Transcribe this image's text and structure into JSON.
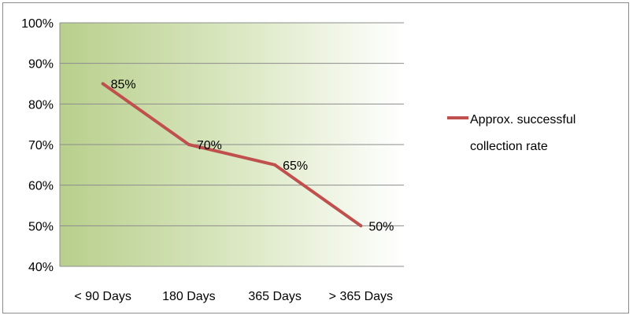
{
  "chart_data": {
    "type": "line",
    "categories": [
      "< 90 Days",
      "180 Days",
      "365 Days",
      "> 365 Days"
    ],
    "series": [
      {
        "name": "Approx. successful collection rate",
        "values": [
          85,
          70,
          65,
          50
        ],
        "labels": [
          "85%",
          "70%",
          "65%",
          "50%"
        ],
        "color": "#c0504d"
      }
    ],
    "title": "",
    "xlabel": "",
    "ylabel": "",
    "ylim": [
      40,
      100
    ],
    "yticks": [
      "40%",
      "50%",
      "60%",
      "70%",
      "80%",
      "90%",
      "100%"
    ],
    "grid": true,
    "legend_position": "right",
    "plot_background": "green-to-white gradient",
    "colors": {
      "gradient_start": "#b8cf8c",
      "gradient_end": "#ffffff",
      "gridline": "#8c8c8c"
    }
  },
  "legend": {
    "line1": "Approx. successful",
    "line2": "collection rate"
  }
}
